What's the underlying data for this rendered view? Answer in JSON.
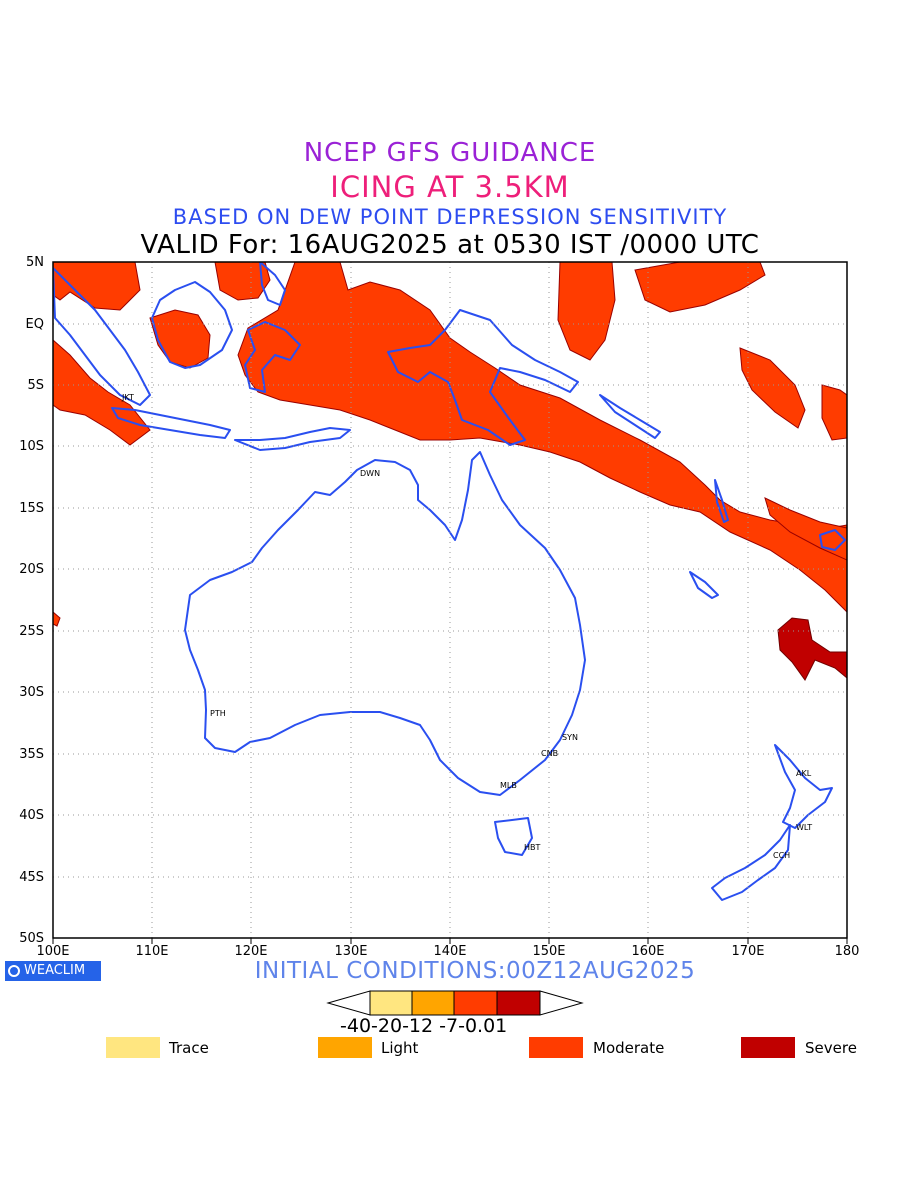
{
  "titles": {
    "line1": "NCEP GFS GUIDANCE",
    "line2": "ICING AT 3.5KM",
    "line3": "BASED ON DEW POINT DEPRESSION SENSITIVITY",
    "line4": "VALID For: 16AUG2025 at 0530 IST /0000 UTC"
  },
  "map": {
    "lon_range": [
      100,
      180
    ],
    "lat_range": [
      -50,
      5
    ],
    "lat_labels": [
      "5N",
      "EQ",
      "5S",
      "10S",
      "15S",
      "20S",
      "25S",
      "30S",
      "35S",
      "40S",
      "45S",
      "50S"
    ],
    "lon_labels": [
      "100E",
      "110E",
      "120E",
      "130E",
      "140E",
      "150E",
      "160E",
      "170E",
      "180"
    ],
    "grid": "dotted",
    "coast_color": "#2a4ff0",
    "cities": [
      "JKT",
      "DWN",
      "PTH",
      "SYN",
      "CNB",
      "MLB",
      "HBT",
      "AKL",
      "WLT",
      "CCH"
    ]
  },
  "footer": {
    "logo_text": "WEACLIM",
    "initial_conditions": "INITIAL CONDITIONS:00Z12AUG2025"
  },
  "colorbar": {
    "tick_text": "-40-20-12 -7-0.01",
    "colors": [
      "#ffe680",
      "#ffa500",
      "#ff3c00",
      "#c00000"
    ]
  },
  "legend": [
    {
      "label": "Trace",
      "color": "#ffe680"
    },
    {
      "label": "Light",
      "color": "#ffa500"
    },
    {
      "label": "Moderate",
      "color": "#ff3c00"
    },
    {
      "label": "Severe",
      "color": "#c00000"
    }
  ]
}
